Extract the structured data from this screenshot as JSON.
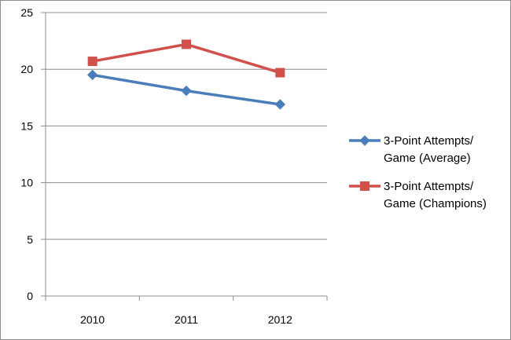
{
  "chart_data": {
    "type": "line",
    "title": "",
    "xlabel": "",
    "ylabel": "",
    "categories": [
      "2010",
      "2011",
      "2012"
    ],
    "ylim": [
      0,
      25
    ],
    "yticks": [
      "0",
      "5",
      "10",
      "15",
      "20",
      "25"
    ],
    "grid": "horizontal",
    "legend_position": "right",
    "series": [
      {
        "name_lines": [
          "3-Point Attempts/",
          "Game (Average)"
        ],
        "values": [
          19.5,
          18.1,
          16.9
        ],
        "color": "#4a7ebb",
        "marker": "diamond"
      },
      {
        "name_lines": [
          "3-Point Attempts/",
          "Game (Champions)"
        ],
        "values": [
          20.7,
          22.2,
          19.7
        ],
        "color": "#d1504b",
        "marker": "square"
      }
    ]
  }
}
